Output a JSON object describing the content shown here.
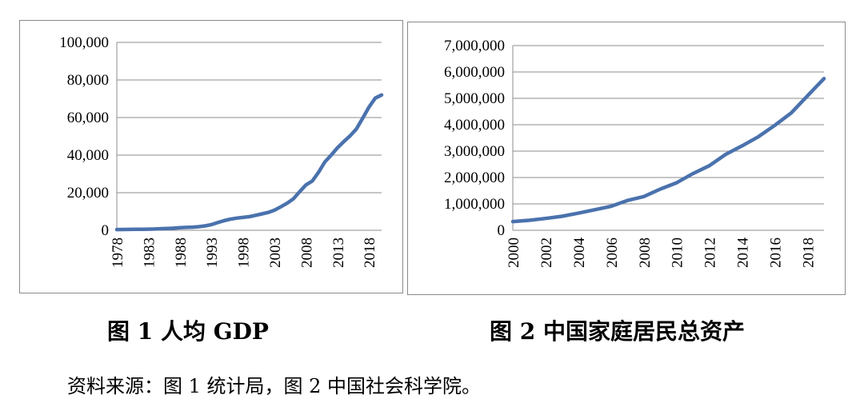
{
  "chart_data": [
    {
      "type": "line",
      "title": "",
      "xlabel": "",
      "ylabel": "",
      "x_tick_labels": [
        "1978",
        "1983",
        "1988",
        "1993",
        "1998",
        "2003",
        "2008",
        "2013",
        "2018"
      ],
      "y_tick_labels": [
        "0",
        "20,000",
        "40,000",
        "60,000",
        "80,000",
        "100,000"
      ],
      "ylim": [
        0,
        100000
      ],
      "xlim": [
        1978,
        2020
      ],
      "grid": "horizontal",
      "color": "#4a72ad",
      "series": [
        {
          "x": [
            1978,
            1979,
            1980,
            1981,
            1982,
            1983,
            1984,
            1985,
            1986,
            1987,
            1988,
            1989,
            1990,
            1991,
            1992,
            1993,
            1994,
            1995,
            1996,
            1997,
            1998,
            1999,
            2000,
            2001,
            2002,
            2003,
            2004,
            2005,
            2006,
            2007,
            2008,
            2009,
            2010,
            2011,
            2012,
            2013,
            2014,
            2015,
            2016,
            2017,
            2018,
            2019,
            2020
          ],
          "values": [
            385,
            423,
            468,
            497,
            533,
            588,
            702,
            866,
            973,
            1123,
            1378,
            1536,
            1663,
            1912,
            2334,
            3027,
            4081,
            5091,
            5898,
            6481,
            6860,
            7229,
            7942,
            8717,
            9506,
            10666,
            12487,
            14368,
            16738,
            20505,
            24121,
            26222,
            30876,
            36403,
            40007,
            43852,
            47203,
            50251,
            53935,
            59660,
            65534,
            70328,
            72000
          ]
        }
      ]
    },
    {
      "type": "line",
      "title": "",
      "xlabel": "",
      "ylabel": "",
      "x_tick_labels": [
        "2000",
        "2002",
        "2004",
        "2006",
        "2008",
        "2010",
        "2012",
        "2014",
        "2016",
        "2018"
      ],
      "y_tick_labels": [
        "0",
        "1,000,000",
        "2,000,000",
        "3,000,000",
        "4,000,000",
        "5,000,000",
        "6,000,000",
        "7,000,000"
      ],
      "ylim": [
        0,
        7000000
      ],
      "xlim": [
        2000,
        2019
      ],
      "grid": "horizontal",
      "color": "#4a72ad",
      "series": [
        {
          "x": [
            2000,
            2001,
            2002,
            2003,
            2004,
            2005,
            2006,
            2007,
            2008,
            2009,
            2010,
            2011,
            2012,
            2013,
            2014,
            2015,
            2016,
            2017,
            2018,
            2019
          ],
          "values": [
            330000,
            380000,
            450000,
            530000,
            650000,
            780000,
            910000,
            1130000,
            1280000,
            1560000,
            1800000,
            2150000,
            2450000,
            2880000,
            3200000,
            3550000,
            3980000,
            4450000,
            5100000,
            5750000
          ]
        }
      ]
    }
  ],
  "captions": {
    "chart1": "图 1  人均 GDP",
    "chart2": "图 2  中国家庭居民总资产"
  },
  "source_note": "资料来源：图 1 统计局，图 2  中国社会科学院。"
}
